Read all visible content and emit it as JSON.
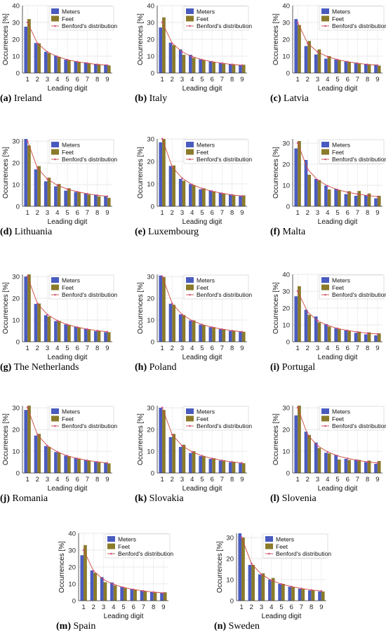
{
  "benford": [
    30.1,
    17.6,
    12.5,
    9.7,
    7.9,
    6.7,
    5.8,
    5.1,
    4.6
  ],
  "colors": {
    "meters": "#4a5bbf",
    "feet": "#8a7a2a",
    "benford_line": "#c84a3a",
    "benford_marker": "#d2508a"
  },
  "chart_data": [
    {
      "type": "bar",
      "caption_letter": "(a)",
      "caption_name": "Ireland",
      "xlabel": "Leading digit",
      "ylabel": "Occurrences [%]",
      "ylim": [
        0,
        40
      ],
      "yticks": [
        0,
        10,
        20,
        30,
        40
      ],
      "categories": [
        "1",
        "2",
        "3",
        "4",
        "5",
        "6",
        "7",
        "8",
        "9"
      ],
      "series": [
        {
          "name": "Meters",
          "values": [
            27.5,
            17.8,
            12.6,
            10.3,
            7.9,
            6.8,
            6.3,
            5.4,
            5.0
          ]
        },
        {
          "name": "Feet",
          "values": [
            32.0,
            17.6,
            11.8,
            9.6,
            7.6,
            6.5,
            5.9,
            5.1,
            4.5
          ]
        },
        {
          "name": "Benford's distribution"
        }
      ],
      "legend": "top-right",
      "grid": true
    },
    {
      "type": "bar",
      "caption_letter": "(b)",
      "caption_name": "Italy",
      "xlabel": "Leading digit",
      "ylabel": "Occurrences [%]",
      "ylim": [
        0,
        40
      ],
      "yticks": [
        0,
        10,
        20,
        30,
        40
      ],
      "categories": [
        "1",
        "2",
        "3",
        "4",
        "5",
        "6",
        "7",
        "8",
        "9"
      ],
      "series": [
        {
          "name": "Meters",
          "values": [
            27.0,
            18.0,
            14.0,
            10.8,
            8.1,
            6.9,
            5.9,
            5.3,
            4.6
          ]
        },
        {
          "name": "Feet",
          "values": [
            33.0,
            16.5,
            10.8,
            9.0,
            7.6,
            6.5,
            5.6,
            5.0,
            4.9
          ]
        },
        {
          "name": "Benford's distribution"
        }
      ],
      "legend": "top-right",
      "grid": true
    },
    {
      "type": "bar",
      "caption_letter": "(c)",
      "caption_name": "Latvia",
      "xlabel": "Leading digit",
      "ylabel": "Occurrences [%]",
      "ylim": [
        0,
        40
      ],
      "yticks": [
        0,
        10,
        20,
        30,
        40
      ],
      "categories": [
        "1",
        "2",
        "3",
        "4",
        "5",
        "6",
        "7",
        "8",
        "9"
      ],
      "series": [
        {
          "name": "Meters",
          "values": [
            32.0,
            16.0,
            11.0,
            8.5,
            8.0,
            6.8,
            5.8,
            5.4,
            5.0
          ]
        },
        {
          "name": "Feet",
          "values": [
            28.5,
            19.0,
            14.0,
            10.0,
            7.5,
            6.5,
            5.5,
            4.8,
            4.4
          ]
        },
        {
          "name": "Benford's distribution"
        }
      ],
      "legend": "top-right",
      "grid": true
    },
    {
      "type": "bar",
      "caption_letter": "(d)",
      "caption_name": "Lithuania",
      "xlabel": "Leading digit",
      "ylabel": "Occurrences [%]",
      "ylim": [
        0,
        31
      ],
      "yticks": [
        0,
        10,
        20,
        30
      ],
      "categories": [
        "1",
        "2",
        "3",
        "4",
        "5",
        "6",
        "7",
        "8",
        "9"
      ],
      "series": [
        {
          "name": "Meters",
          "values": [
            31.0,
            17.0,
            11.5,
            9.2,
            7.2,
            6.6,
            5.9,
            5.2,
            4.8
          ]
        },
        {
          "name": "Feet",
          "values": [
            28.0,
            18.5,
            13.2,
            10.3,
            8.3,
            6.6,
            5.4,
            4.6,
            3.9
          ]
        },
        {
          "name": "Benford's distribution"
        }
      ],
      "legend": "top-right",
      "grid": true
    },
    {
      "type": "bar",
      "caption_letter": "(e)",
      "caption_name": "Luxembourg",
      "xlabel": "Leading digit",
      "ylabel": "Occurrences [%]",
      "ylim": [
        0,
        30
      ],
      "yticks": [
        0,
        10,
        20,
        30
      ],
      "categories": [
        "1",
        "2",
        "3",
        "4",
        "5",
        "6",
        "7",
        "8",
        "9"
      ],
      "series": [
        {
          "name": "Meters",
          "values": [
            28.5,
            18.0,
            12.2,
            9.9,
            7.6,
            7.1,
            6.1,
            5.2,
            4.6
          ]
        },
        {
          "name": "Feet",
          "values": [
            30.0,
            18.2,
            11.4,
            9.4,
            8.0,
            6.7,
            5.7,
            4.9,
            4.9
          ]
        },
        {
          "name": "Benford's distribution"
        }
      ],
      "legend": "top-right",
      "grid": true
    },
    {
      "type": "bar",
      "caption_letter": "(f)",
      "caption_name": "Malta",
      "xlabel": "Leading digit",
      "ylabel": "Occurrences [%]",
      "ylim": [
        0,
        32
      ],
      "yticks": [
        0,
        10,
        20,
        30
      ],
      "categories": [
        "1",
        "2",
        "3",
        "4",
        "5",
        "6",
        "7",
        "8",
        "9"
      ],
      "series": [
        {
          "name": "Meters",
          "values": [
            27.5,
            22.0,
            13.0,
            9.8,
            8.3,
            5.8,
            5.0,
            5.3,
            3.8
          ]
        },
        {
          "name": "Feet",
          "values": [
            31.0,
            15.0,
            12.5,
            8.0,
            7.8,
            7.2,
            7.3,
            6.1,
            5.0
          ]
        },
        {
          "name": "Benford's distribution"
        }
      ],
      "legend": "top-right",
      "grid": true
    },
    {
      "type": "bar",
      "caption_letter": "(g)",
      "caption_name": "The Netherlands",
      "xlabel": "Leading digit",
      "ylabel": "Occurrences [%]",
      "ylim": [
        0,
        31
      ],
      "yticks": [
        0,
        10,
        20,
        30
      ],
      "categories": [
        "1",
        "2",
        "3",
        "4",
        "5",
        "6",
        "7",
        "8",
        "9"
      ],
      "series": [
        {
          "name": "Meters",
          "values": [
            30.0,
            17.4,
            12.2,
            9.5,
            8.0,
            6.9,
            5.9,
            4.9,
            4.4
          ]
        },
        {
          "name": "Feet",
          "values": [
            31.0,
            17.6,
            11.6,
            9.6,
            7.8,
            6.5,
            5.7,
            5.0,
            4.4
          ]
        },
        {
          "name": "Benford's distribution"
        }
      ],
      "legend": "top-right",
      "grid": true
    },
    {
      "type": "bar",
      "caption_letter": "(h)",
      "caption_name": "Poland",
      "xlabel": "Leading digit",
      "ylabel": "Occurrences [%]",
      "ylim": [
        0,
        31
      ],
      "yticks": [
        0,
        10,
        20,
        30
      ],
      "categories": [
        "1",
        "2",
        "3",
        "4",
        "5",
        "6",
        "7",
        "8",
        "9"
      ],
      "series": [
        {
          "name": "Meters",
          "values": [
            30.5,
            17.5,
            12.6,
            9.8,
            7.9,
            6.7,
            5.8,
            5.0,
            4.6
          ]
        },
        {
          "name": "Feet",
          "values": [
            29.8,
            17.0,
            12.3,
            9.8,
            7.7,
            6.7,
            5.8,
            5.0,
            4.6
          ]
        },
        {
          "name": "Benford's distribution"
        }
      ],
      "legend": "top-right",
      "grid": true
    },
    {
      "type": "bar",
      "caption_letter": "(i)",
      "caption_name": "Portugal",
      "xlabel": "Leading digit",
      "ylabel": "Occurrences [%]",
      "ylim": [
        0,
        40
      ],
      "yticks": [
        0,
        10,
        20,
        30,
        40
      ],
      "categories": [
        "1",
        "2",
        "3",
        "4",
        "5",
        "6",
        "7",
        "8",
        "9"
      ],
      "series": [
        {
          "name": "Meters",
          "values": [
            27.0,
            19.0,
            15.0,
            10.5,
            8.0,
            6.8,
            5.3,
            4.4,
            3.8
          ]
        },
        {
          "name": "Feet",
          "values": [
            33.0,
            16.0,
            11.5,
            9.0,
            7.5,
            6.5,
            6.0,
            5.6,
            5.0
          ]
        },
        {
          "name": "Benford's distribution"
        }
      ],
      "legend": "top-right",
      "grid": true
    },
    {
      "type": "bar",
      "caption_letter": "(j)",
      "caption_name": "Romania",
      "xlabel": "Leading digit",
      "ylabel": "Occurrences [%]",
      "ylim": [
        0,
        31
      ],
      "yticks": [
        0,
        10,
        20,
        30
      ],
      "categories": [
        "1",
        "2",
        "3",
        "4",
        "5",
        "6",
        "7",
        "8",
        "9"
      ],
      "series": [
        {
          "name": "Meters",
          "values": [
            29.0,
            17.2,
            12.4,
            9.6,
            8.0,
            6.8,
            5.9,
            5.1,
            4.6
          ]
        },
        {
          "name": "Feet",
          "values": [
            31.0,
            18.0,
            12.0,
            9.4,
            7.7,
            6.6,
            5.7,
            4.9,
            4.4
          ]
        },
        {
          "name": "Benford's distribution"
        }
      ],
      "legend": "top-right",
      "grid": true
    },
    {
      "type": "bar",
      "caption_letter": "(k)",
      "caption_name": "Slovakia",
      "xlabel": "Leading digit",
      "ylabel": "Occurrences [%]",
      "ylim": [
        0,
        31
      ],
      "yticks": [
        0,
        10,
        20,
        30
      ],
      "categories": [
        "1",
        "2",
        "3",
        "4",
        "5",
        "6",
        "7",
        "8",
        "9"
      ],
      "series": [
        {
          "name": "Meters",
          "values": [
            30.0,
            16.5,
            12.0,
            9.2,
            7.8,
            6.5,
            5.7,
            5.0,
            4.5
          ]
        },
        {
          "name": "Feet",
          "values": [
            29.0,
            18.0,
            13.0,
            10.0,
            7.8,
            6.8,
            5.8,
            5.1,
            4.5
          ]
        },
        {
          "name": "Benford's distribution"
        }
      ],
      "legend": "top-right",
      "grid": true
    },
    {
      "type": "bar",
      "caption_letter": "(l)",
      "caption_name": "Slovenia",
      "xlabel": "Leading digit",
      "ylabel": "Occurrences [%]",
      "ylim": [
        0,
        31
      ],
      "yticks": [
        0,
        10,
        20,
        30
      ],
      "categories": [
        "1",
        "2",
        "3",
        "4",
        "5",
        "6",
        "7",
        "8",
        "9"
      ],
      "series": [
        {
          "name": "Meters",
          "values": [
            26.5,
            19.0,
            14.0,
            9.3,
            8.3,
            6.5,
            6.2,
            5.0,
            4.2
          ]
        },
        {
          "name": "Feet",
          "values": [
            31.0,
            17.5,
            11.5,
            9.0,
            6.2,
            6.0,
            6.0,
            5.7,
            5.5
          ]
        },
        {
          "name": "Benford's distribution"
        }
      ],
      "legend": "top-right",
      "grid": true
    },
    {
      "type": "bar",
      "caption_letter": "(m)",
      "caption_name": "Spain",
      "xlabel": "Leading digit",
      "ylabel": "Occurrences [%]",
      "ylim": [
        0,
        40
      ],
      "yticks": [
        0,
        10,
        20,
        30,
        40
      ],
      "categories": [
        "1",
        "2",
        "3",
        "4",
        "5",
        "6",
        "7",
        "8",
        "9"
      ],
      "series": [
        {
          "name": "Meters",
          "values": [
            27.0,
            18.0,
            14.0,
            10.8,
            8.2,
            6.9,
            5.9,
            5.2,
            4.6
          ]
        },
        {
          "name": "Feet",
          "values": [
            33.0,
            16.5,
            11.0,
            9.0,
            7.6,
            6.5,
            5.7,
            5.0,
            5.0
          ]
        },
        {
          "name": "Benford's distribution"
        }
      ],
      "legend": "top-right",
      "grid": true
    },
    {
      "type": "bar",
      "caption_letter": "(n)",
      "caption_name": "Sweden",
      "xlabel": "Leading digit",
      "ylabel": "Occurrences [%]",
      "ylim": [
        0,
        32
      ],
      "yticks": [
        0,
        10,
        20,
        30
      ],
      "categories": [
        "1",
        "2",
        "3",
        "4",
        "5",
        "6",
        "7",
        "8",
        "9"
      ],
      "series": [
        {
          "name": "Meters",
          "values": [
            32.0,
            17.0,
            12.5,
            10.0,
            8.0,
            6.6,
            5.7,
            4.9,
            4.4
          ]
        },
        {
          "name": "Feet",
          "values": [
            30.0,
            17.0,
            13.0,
            10.8,
            8.0,
            6.6,
            5.5,
            5.0,
            4.4
          ]
        },
        {
          "name": "Benford's distribution"
        }
      ],
      "legend": "top-right",
      "grid": true
    }
  ]
}
